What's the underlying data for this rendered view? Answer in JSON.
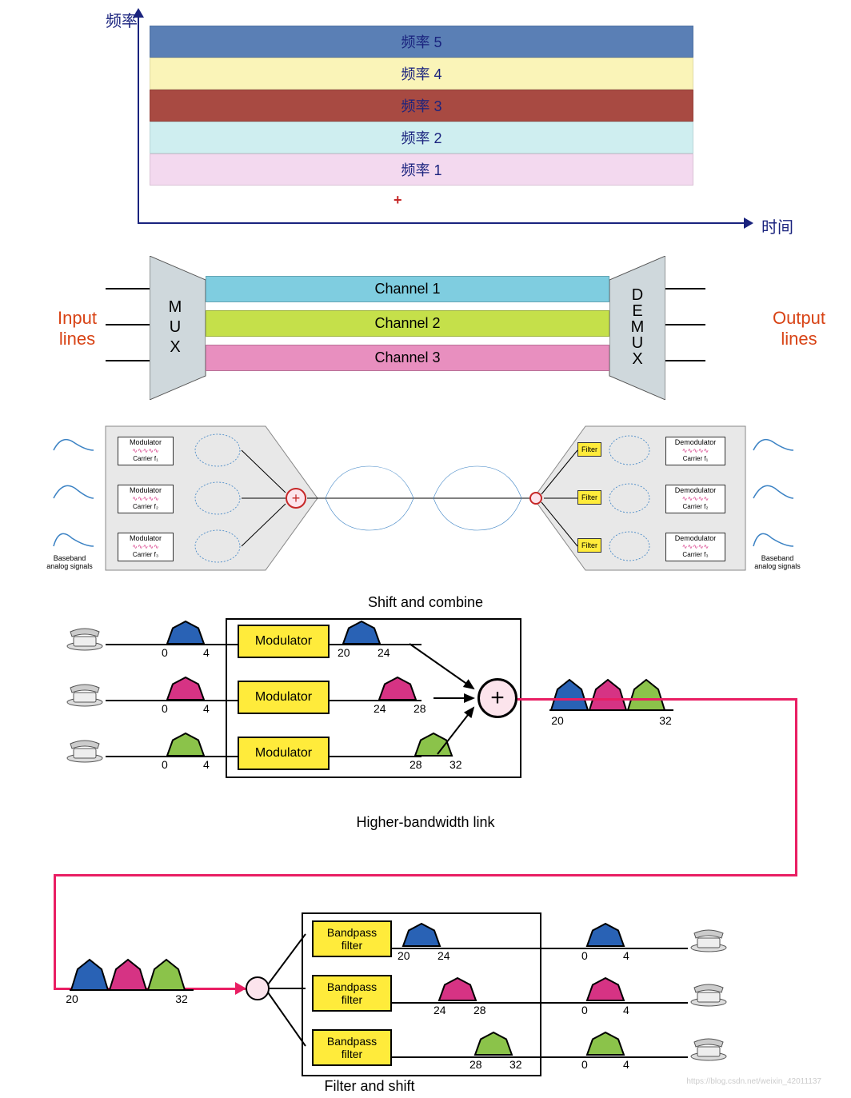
{
  "freq_chart": {
    "y_label": "频率",
    "x_label": "时间",
    "plus": "+",
    "bands": [
      {
        "label": "频率 5",
        "color": "#5a7fb5"
      },
      {
        "label": "频率 4",
        "color": "#faf4b8"
      },
      {
        "label": "频率 3",
        "color": "#a84a42"
      },
      {
        "label": "频率 2",
        "color": "#cfeef0"
      },
      {
        "label": "频率 1",
        "color": "#f3d9ef"
      }
    ],
    "axis_color": "#1a237e",
    "text_color": "#1a237e"
  },
  "mux": {
    "input_label": "Input\nlines",
    "output_label": "Output\nlines",
    "mux_text": "MUX",
    "demux_text": "DEMUX",
    "trap_fill": "#cfd8dc",
    "channels": [
      {
        "label": "Channel 1",
        "color": "#7fcde0"
      },
      {
        "label": "Channel 2",
        "color": "#c5e04a"
      },
      {
        "label": "Channel 3",
        "color": "#e88fbf"
      }
    ],
    "label_color": "#d84315"
  },
  "mod_detail": {
    "bg_fill": "#e8e8e8",
    "modulator_label": "Modulator",
    "demodulator_label": "Demodulator",
    "filter_label": "Filter",
    "carriers": [
      "Carrier f₁",
      "Carrier f₂",
      "Carrier f₃"
    ],
    "baseband_label": "Baseband\nanalog signals",
    "plus": "+",
    "wave_colors": [
      "#d63384",
      "#d63384",
      "#d63384"
    ],
    "signal_color": "#3b82c4",
    "filter_color": "#ffeb3b"
  },
  "shift": {
    "title_top": "Shift and combine",
    "title_mid": "Higher-bandwidth link",
    "title_bot": "Filter and shift",
    "modulator_label": "Modulator",
    "filter_label": "Bandpass\nfilter",
    "plus": "+",
    "pink": "#e91e63",
    "yellow": "#ffeb3b",
    "signals": {
      "blue": "#2962b5",
      "pink": "#d63384",
      "green": "#8bc34a"
    },
    "input_range": [
      "0",
      "4"
    ],
    "shifted": [
      [
        "20",
        "24"
      ],
      [
        "24",
        "28"
      ],
      [
        "28",
        "32"
      ]
    ],
    "combined": [
      "20",
      "32"
    ],
    "output_range": [
      "0",
      "4"
    ]
  },
  "watermark": "https://blog.csdn.net/weixin_42011137"
}
